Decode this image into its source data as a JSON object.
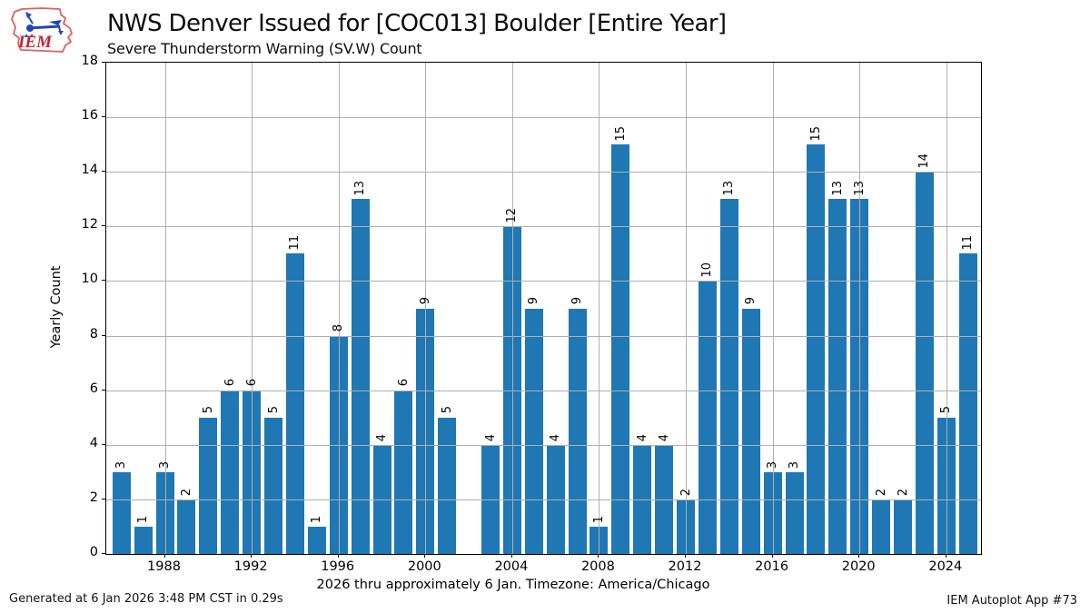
{
  "header": {
    "title": "NWS Denver Issued for [COC013] Boulder [Entire Year]",
    "subtitle": "Severe Thunderstorm Warning (SV.W) Count",
    "logo_text": "IEM"
  },
  "footer": {
    "generated": "Generated at 6 Jan 2026 3:48 PM CST in 0.29s",
    "app": "IEM Autoplot App #73"
  },
  "chart_data": {
    "type": "bar",
    "title": "NWS Denver Issued for [COC013] Boulder [Entire Year]",
    "subtitle": "Severe Thunderstorm Warning (SV.W) Count",
    "xlabel": "2026 thru approximately 6 Jan. Timezone: America/Chicago",
    "ylabel": "Yearly Count",
    "categories": [
      1986,
      1987,
      1988,
      1989,
      1990,
      1991,
      1992,
      1993,
      1994,
      1995,
      1996,
      1997,
      1998,
      1999,
      2000,
      2001,
      2002,
      2003,
      2004,
      2005,
      2006,
      2007,
      2008,
      2009,
      2010,
      2011,
      2012,
      2013,
      2014,
      2015,
      2016,
      2017,
      2018,
      2019,
      2020,
      2021,
      2022,
      2023,
      2024,
      2025
    ],
    "values": [
      3,
      1,
      3,
      2,
      5,
      6,
      6,
      5,
      11,
      1,
      8,
      13,
      4,
      6,
      9,
      5,
      0,
      4,
      12,
      9,
      4,
      9,
      1,
      15,
      4,
      4,
      2,
      10,
      13,
      9,
      3,
      3,
      15,
      13,
      13,
      2,
      2,
      14,
      5,
      11
    ],
    "bar_labels_rotated": true,
    "ylim": [
      0,
      18
    ],
    "yticks": [
      0,
      2,
      4,
      6,
      8,
      10,
      12,
      14,
      16,
      18
    ],
    "xticks": [
      1988,
      1992,
      1996,
      2000,
      2004,
      2008,
      2012,
      2016,
      2020,
      2024
    ],
    "xlim": [
      1985.3,
      2025.6
    ],
    "bar_width_years": 0.84,
    "grid": "on",
    "grid_above_bars": true,
    "legend_position": "none",
    "bar_color": "#1f77b4",
    "grid_color": "#b0b0b0",
    "spine_color": "#000000",
    "logo_red": "#cc2233",
    "logo_outline": "#e06060",
    "logo_blue": "#2244bb"
  }
}
